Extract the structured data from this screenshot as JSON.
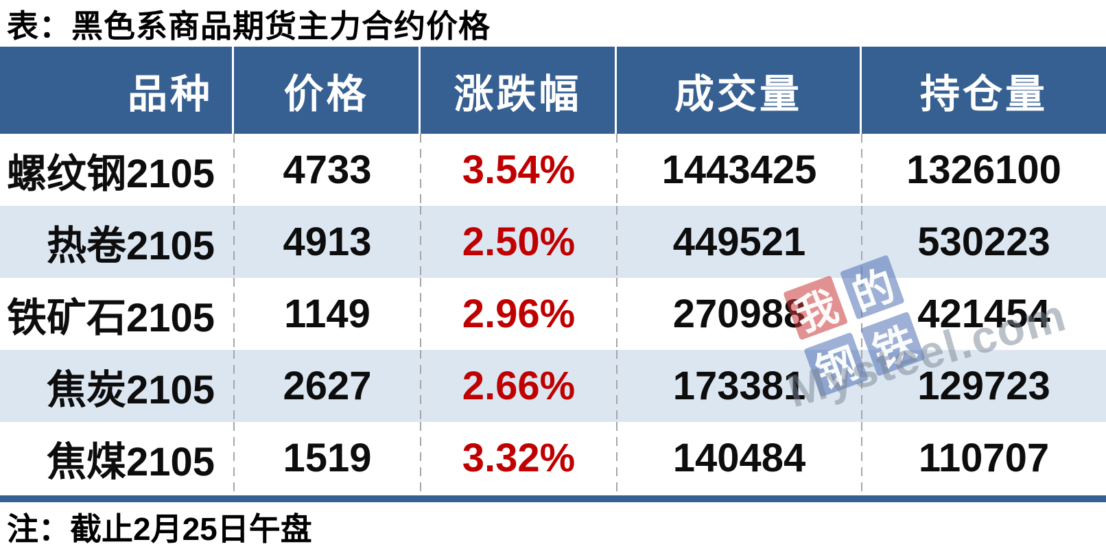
{
  "title": "表：黑色系商品期货主力合约价格",
  "note": "注：截止2月25日午盘",
  "colors": {
    "header_bg": "#376092",
    "alt_row_bg": "#dce6f1",
    "change_red": "#c00000",
    "bottom_bar": "#376092",
    "dashed_separator": "#a6a6a6"
  },
  "table": {
    "columns": [
      "品种",
      "价格",
      "涨跌幅",
      "成交量",
      "持仓量"
    ],
    "rows": [
      {
        "name": "螺纹钢2105",
        "price": "4733",
        "change": "3.54%",
        "volume": "1443425",
        "open_interest": "1326100"
      },
      {
        "name": "热卷2105",
        "price": "4913",
        "change": "2.50%",
        "volume": "449521",
        "open_interest": "530223"
      },
      {
        "name": "铁矿石2105",
        "price": "1149",
        "change": "2.96%",
        "volume": "270988",
        "open_interest": "421454"
      },
      {
        "name": "焦炭2105",
        "price": "2627",
        "change": "2.66%",
        "volume": "173381",
        "open_interest": "129723"
      },
      {
        "name": "焦煤2105",
        "price": "1519",
        "change": "3.32%",
        "volume": "140484",
        "open_interest": "110707"
      }
    ]
  },
  "watermark": {
    "tiles": [
      "我",
      "的",
      "钢",
      "铁"
    ],
    "site": "Mysteel.com"
  },
  "chart_data": {
    "type": "table",
    "title": "表：黑色系商品期货主力合约价格",
    "columns": [
      "品种",
      "价格",
      "涨跌幅",
      "成交量",
      "持仓量"
    ],
    "rows": [
      [
        "螺纹钢2105",
        4733,
        "3.54%",
        1443425,
        1326100
      ],
      [
        "热卷2105",
        4913,
        "2.50%",
        449521,
        530223
      ],
      [
        "铁矿石2105",
        1149,
        "2.96%",
        270988,
        421454
      ],
      [
        "焦炭2105",
        2627,
        "2.66%",
        173381,
        129723
      ],
      [
        "焦煤2105",
        1519,
        "3.32%",
        140484,
        110707
      ]
    ],
    "note": "注：截止2月25日午盘",
    "layout_hints": {
      "alternating_row_shading": true,
      "change_column_color": "#c00000",
      "header_style": "white-serif-on-blue"
    }
  }
}
